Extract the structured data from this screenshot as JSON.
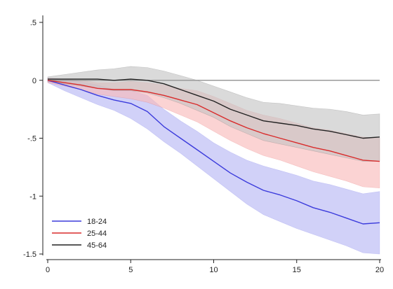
{
  "chart_data": {
    "type": "line",
    "title": "",
    "xlabel": "",
    "ylabel": "",
    "xlim": [
      0,
      20
    ],
    "ylim": [
      -1.5,
      0.5
    ],
    "xticks": [
      "0",
      "5",
      "10",
      "15",
      "20"
    ],
    "yticks": [
      ".5",
      "0",
      "-.5",
      "-1",
      "-1.5"
    ],
    "grid": false,
    "zero_line": true,
    "legend_position": "bottom-left",
    "x": [
      0,
      1,
      2,
      3,
      4,
      5,
      6,
      7,
      8,
      9,
      10,
      11,
      12,
      13,
      14,
      15,
      16,
      17,
      18,
      19,
      20
    ],
    "series": [
      {
        "name": "18-24",
        "color": "#3b3bdc",
        "band_color": "#b4b4f3",
        "values": [
          0.0,
          -0.04,
          -0.08,
          -0.13,
          -0.17,
          -0.2,
          -0.27,
          -0.4,
          -0.5,
          -0.6,
          -0.7,
          -0.8,
          -0.88,
          -0.95,
          -0.99,
          -1.04,
          -1.1,
          -1.14,
          -1.19,
          -1.24,
          -1.23
        ],
        "lower": [
          -0.02,
          -0.09,
          -0.15,
          -0.21,
          -0.26,
          -0.33,
          -0.42,
          -0.53,
          -0.63,
          -0.74,
          -0.85,
          -0.96,
          -1.07,
          -1.16,
          -1.22,
          -1.28,
          -1.33,
          -1.38,
          -1.43,
          -1.49,
          -1.5
        ],
        "upper": [
          0.02,
          0.01,
          -0.01,
          -0.04,
          -0.08,
          -0.09,
          -0.13,
          -0.25,
          -0.35,
          -0.44,
          -0.54,
          -0.62,
          -0.69,
          -0.74,
          -0.78,
          -0.82,
          -0.87,
          -0.9,
          -0.94,
          -0.98,
          -0.96
        ]
      },
      {
        "name": "25-44",
        "color": "#d92b2b",
        "band_color": "#f9b8b8",
        "values": [
          0.0,
          -0.02,
          -0.04,
          -0.07,
          -0.08,
          -0.08,
          -0.1,
          -0.13,
          -0.17,
          -0.21,
          -0.28,
          -0.35,
          -0.41,
          -0.46,
          -0.5,
          -0.54,
          -0.58,
          -0.61,
          -0.65,
          -0.69,
          -0.7
        ],
        "lower": [
          -0.02,
          -0.05,
          -0.08,
          -0.12,
          -0.14,
          -0.16,
          -0.19,
          -0.24,
          -0.3,
          -0.36,
          -0.44,
          -0.52,
          -0.59,
          -0.65,
          -0.69,
          -0.74,
          -0.79,
          -0.83,
          -0.87,
          -0.92,
          -0.93
        ],
        "upper": [
          0.02,
          0.01,
          0.0,
          -0.02,
          -0.02,
          -0.01,
          -0.02,
          -0.04,
          -0.07,
          -0.09,
          -0.14,
          -0.2,
          -0.26,
          -0.3,
          -0.33,
          -0.37,
          -0.41,
          -0.43,
          -0.46,
          -0.49,
          -0.5
        ]
      },
      {
        "name": "45-64",
        "color": "#222222",
        "band_color": "#c4c4c4",
        "values": [
          0.01,
          0.01,
          0.01,
          0.01,
          0.0,
          0.01,
          0.0,
          -0.03,
          -0.08,
          -0.13,
          -0.18,
          -0.25,
          -0.3,
          -0.35,
          -0.37,
          -0.39,
          -0.42,
          -0.44,
          -0.47,
          -0.5,
          -0.49
        ],
        "lower": [
          -0.01,
          -0.03,
          -0.05,
          -0.07,
          -0.09,
          -0.09,
          -0.11,
          -0.15,
          -0.2,
          -0.26,
          -0.32,
          -0.4,
          -0.46,
          -0.52,
          -0.55,
          -0.58,
          -0.61,
          -0.64,
          -0.67,
          -0.7,
          -0.7
        ],
        "upper": [
          0.03,
          0.05,
          0.07,
          0.09,
          0.1,
          0.12,
          0.11,
          0.08,
          0.04,
          0.0,
          -0.05,
          -0.1,
          -0.15,
          -0.19,
          -0.2,
          -0.22,
          -0.24,
          -0.25,
          -0.27,
          -0.3,
          -0.29
        ]
      }
    ]
  }
}
